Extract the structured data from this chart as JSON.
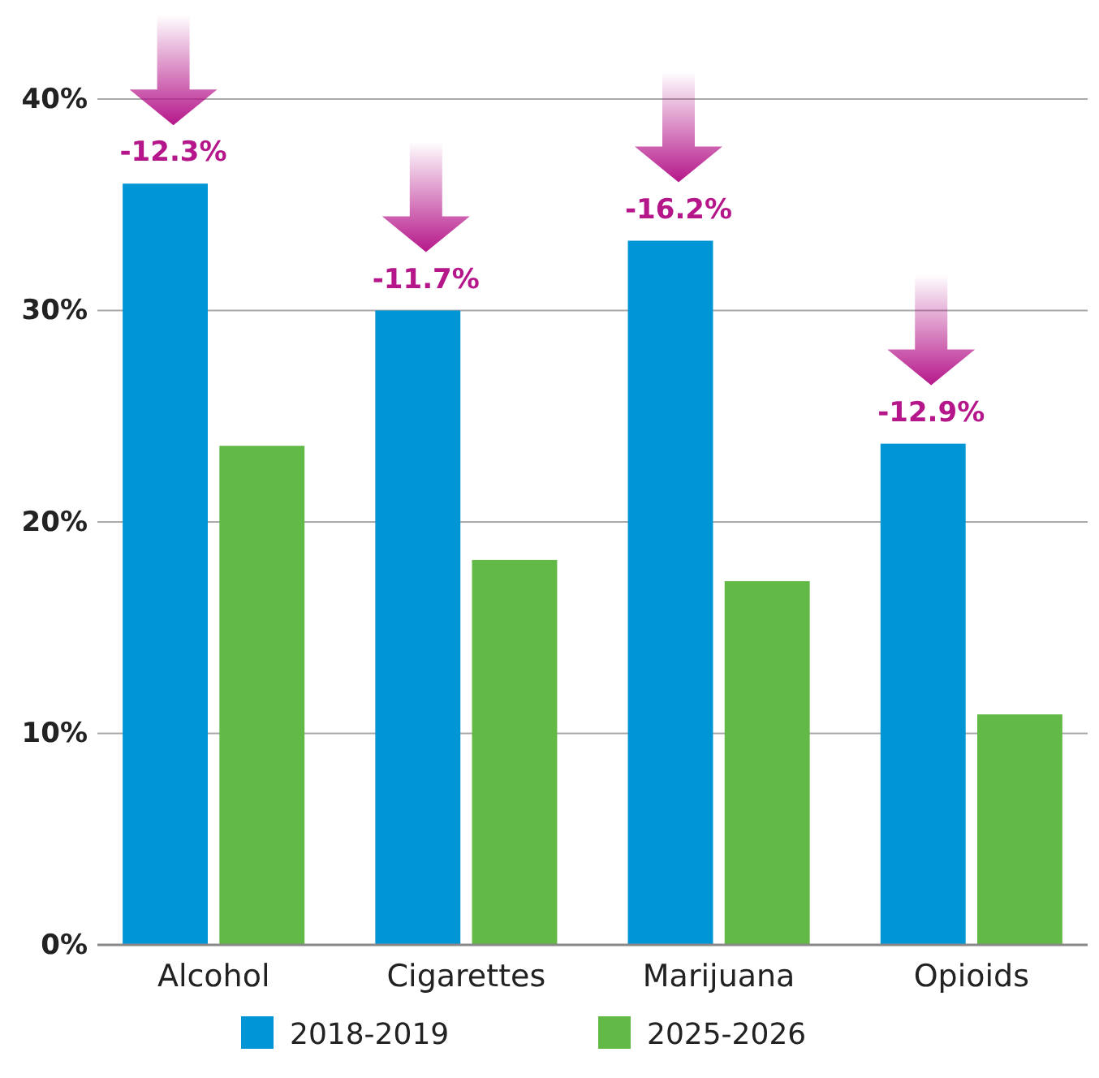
{
  "chart_data": {
    "type": "bar",
    "categories": [
      "Alcohol",
      "Cigarettes",
      "Marijuana",
      "Opioids"
    ],
    "series": [
      {
        "name": "2018-2019",
        "color": "#0095d5",
        "values": [
          36.0,
          30.0,
          33.3,
          23.7
        ]
      },
      {
        "name": "2025-2026",
        "color": "#62b946",
        "values": [
          23.6,
          18.2,
          17.2,
          10.9
        ]
      }
    ],
    "ylim": [
      0,
      40
    ],
    "yticks": [
      {
        "value": 0,
        "label": "0%"
      },
      {
        "value": 10,
        "label": "10%"
      },
      {
        "value": 20,
        "label": "20%"
      },
      {
        "value": 30,
        "label": "30%"
      },
      {
        "value": 40,
        "label": "40%"
      }
    ],
    "grid": "y",
    "legend": "bottom",
    "annotations": [
      {
        "text": "-12.3%",
        "x": "Alcohol",
        "y": 36.0
      },
      {
        "text": "-11.7%",
        "x": "Cigarettes",
        "y": 30.0
      },
      {
        "text": "-16.2%",
        "x": "Marijuana",
        "y": 33.3
      },
      {
        "text": "-12.9%",
        "x": "Opioids",
        "y": 23.7
      }
    ]
  }
}
